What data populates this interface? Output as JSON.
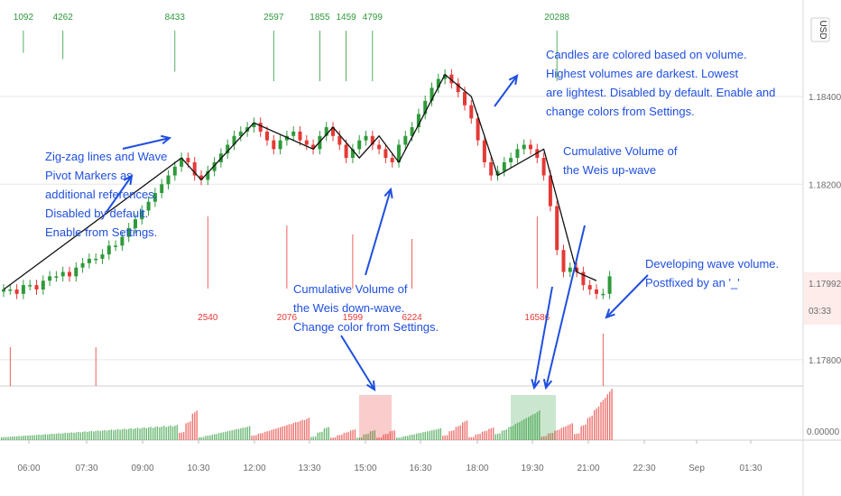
{
  "currency": "USD",
  "price_badge": {
    "price": "1.17992",
    "timer": "03:33"
  },
  "colors": {
    "up": "#2e9a3a",
    "down": "#e53935",
    "zigzag": "#111111",
    "annot": "#1f4fe0",
    "grid": "#e6e6e6"
  },
  "chart_data": [
    {
      "type": "candlestick",
      "ylim": [
        1.1774,
        1.1862
      ],
      "y_ticks": [
        "1.18400",
        "1.18200",
        "1.17800"
      ],
      "y_tick_values": [
        1.184,
        1.182,
        1.178
      ],
      "x_ticks": [
        "06:00",
        "07:30",
        "09:00",
        "10:30",
        "12:00",
        "13:30",
        "15:00",
        "16:30",
        "18:00",
        "19:30",
        "21:00",
        "22:30",
        "Sep",
        "01:30"
      ],
      "series": [
        {
          "name": "price",
          "values": [
            1.1796,
            1.1796,
            1.1795,
            1.1797,
            1.1797,
            1.1796,
            1.1798,
            1.1799,
            1.1799,
            1.18,
            1.1799,
            1.1801,
            1.1802,
            1.1803,
            1.1803,
            1.1804,
            1.1806,
            1.1806,
            1.1808,
            1.181,
            1.1812,
            1.1814,
            1.1816,
            1.1818,
            1.182,
            1.1822,
            1.1824,
            1.1826,
            1.1825,
            1.1822,
            1.1821,
            1.1823,
            1.1825,
            1.1827,
            1.1829,
            1.1831,
            1.1832,
            1.1833,
            1.1834,
            1.1832,
            1.183,
            1.1828,
            1.183,
            1.1831,
            1.1832,
            1.183,
            1.1829,
            1.1828,
            1.1831,
            1.1833,
            1.1831,
            1.1829,
            1.1826,
            1.1828,
            1.183,
            1.1831,
            1.1829,
            1.1828,
            1.1826,
            1.1825,
            1.1829,
            1.1831,
            1.1833,
            1.1836,
            1.1839,
            1.1842,
            1.1844,
            1.1845,
            1.1843,
            1.1841,
            1.1838,
            1.1835,
            1.183,
            1.1825,
            1.1822,
            1.1823,
            1.1825,
            1.1826,
            1.1828,
            1.1829,
            1.1828,
            1.1826,
            1.1822,
            1.1815,
            1.1805,
            1.18,
            1.1801,
            1.18,
            1.1797,
            1.1796,
            1.1795,
            1.1795,
            1.1799
          ]
        }
      ]
    },
    {
      "type": "bar",
      "name": "wave volume",
      "ylim": [
        0,
        1
      ],
      "y_ticks": [
        "0.00000"
      ],
      "shaded_waves": [
        {
          "color": "down"
        },
        {
          "color": "up"
        }
      ]
    }
  ],
  "zigzag_points": [
    [
      0,
      1.1796
    ],
    [
      27,
      1.1826
    ],
    [
      30,
      1.1821
    ],
    [
      38,
      1.1834
    ],
    [
      47,
      1.1828
    ],
    [
      50,
      1.1833
    ],
    [
      54,
      1.1826
    ],
    [
      57,
      1.1831
    ],
    [
      60,
      1.1825
    ],
    [
      67,
      1.1845
    ],
    [
      71,
      1.184
    ],
    [
      75,
      1.1822
    ],
    [
      82,
      1.1828
    ],
    [
      87,
      1.18
    ],
    [
      90,
      1.1798
    ]
  ],
  "wave_labels": [
    {
      "text": "1092",
      "idx": 3,
      "side": "up",
      "len": 70
    },
    {
      "text": "4262",
      "idx": 9,
      "side": "up",
      "len": 90
    },
    {
      "text": "8433",
      "idx": 26,
      "side": "up",
      "len": 130
    },
    {
      "text": "2597",
      "idx": 41,
      "side": "up",
      "len": 160
    },
    {
      "text": "1855",
      "idx": 48,
      "side": "up",
      "len": 160
    },
    {
      "text": "1459",
      "idx": 52,
      "side": "up",
      "len": 160
    },
    {
      "text": "4799",
      "idx": 56,
      "side": "up",
      "len": 160
    },
    {
      "text": "20288",
      "idx": 84,
      "side": "up",
      "len": 160
    },
    {
      "text": "2540",
      "idx": 31,
      "side": "down",
      "len": 80
    },
    {
      "text": "2076",
      "idx": 43,
      "side": "down",
      "len": 70
    },
    {
      "text": "1599",
      "idx": 53,
      "side": "down",
      "len": 60
    },
    {
      "text": "6224",
      "idx": 62,
      "side": "down",
      "len": 55
    },
    {
      "text": "16586",
      "idx": 81,
      "side": "down",
      "len": 80
    }
  ],
  "annotations": {
    "zigzag_note": [
      "Zig-zag lines and Wave",
      "Pivot Markers as",
      "additional references.",
      "Disabled by default.",
      "Enable from Settings."
    ],
    "candles_note": [
      "Candles are colored based on volume.",
      "Highest volumes are darkest. Lowest",
      "are lightest. Disabled by default. Enable and",
      "change colors from Settings."
    ],
    "up_wave_note": [
      "Cumulative Volume of",
      "the Weis up-wave"
    ],
    "down_wave_note": [
      "Cumulative Volume of",
      "the Weis down-wave.",
      "Change color from Settings."
    ],
    "developing_note": [
      "Developing wave volume.",
      "Postfixed by an '_'"
    ]
  }
}
